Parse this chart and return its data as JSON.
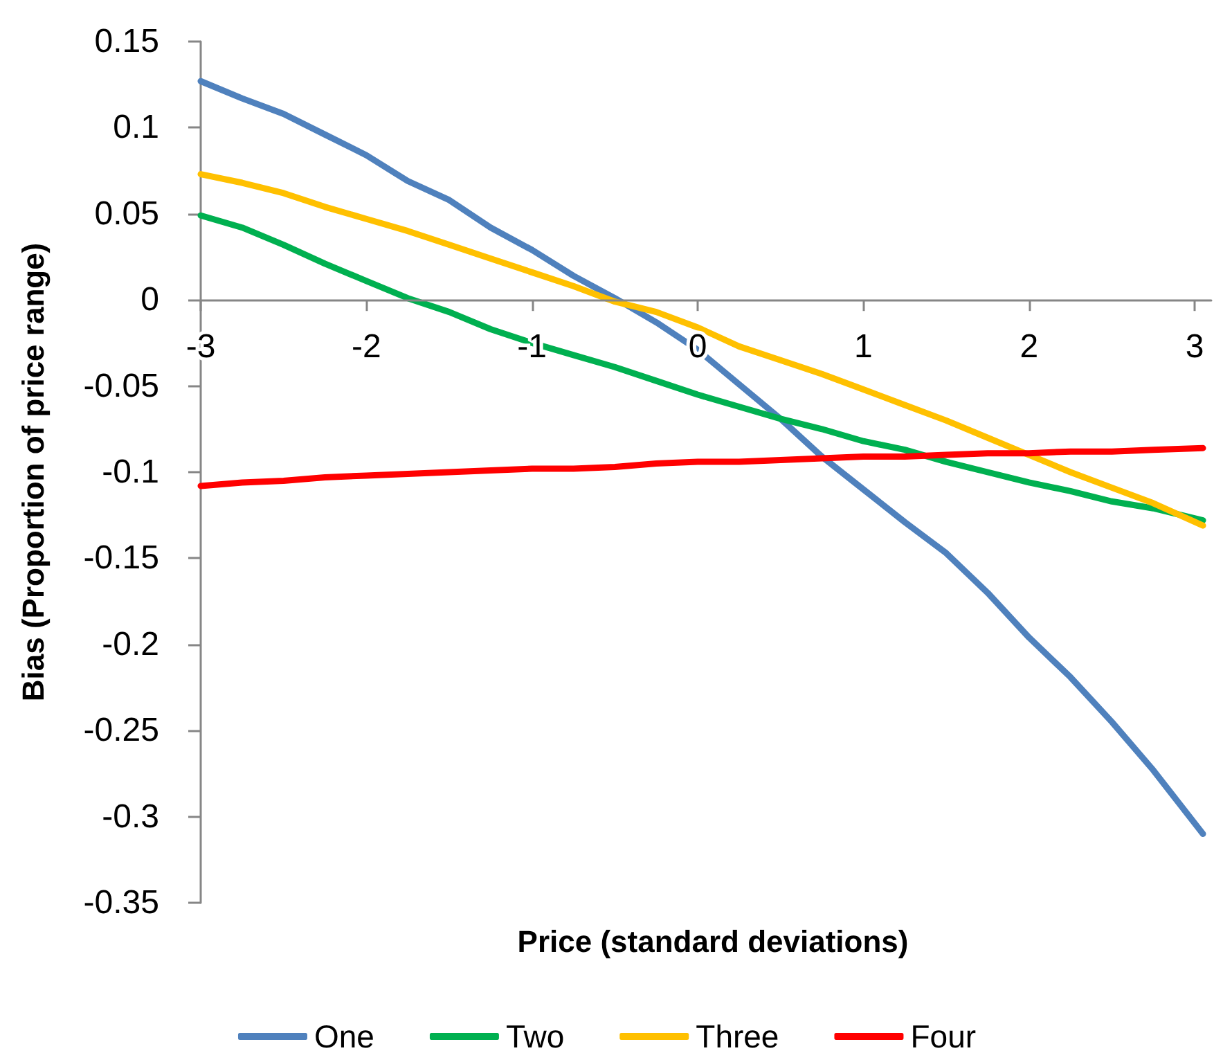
{
  "chart_data": {
    "type": "line",
    "xlabel": "Price (standard deviations)",
    "ylabel": "Bias (Proportion of price range)",
    "x": [
      -3,
      -2.75,
      -2.5,
      -2.25,
      -2,
      -1.75,
      -1.5,
      -1.25,
      -1,
      -0.75,
      -0.5,
      -0.25,
      0,
      0.25,
      0.5,
      0.75,
      1,
      1.25,
      1.5,
      1.75,
      2,
      2.25,
      2.5,
      2.75,
      3.05
    ],
    "series": [
      {
        "name": "One",
        "color": "#4f81bd",
        "values": [
          0.127,
          0.117,
          0.108,
          0.096,
          0.084,
          0.069,
          0.058,
          0.042,
          0.029,
          0.014,
          0.001,
          -0.013,
          -0.029,
          -0.049,
          -0.069,
          -0.091,
          -0.11,
          -0.129,
          -0.147,
          -0.17,
          -0.196,
          -0.219,
          -0.245,
          -0.273,
          -0.31
        ]
      },
      {
        "name": "Two",
        "color": "#00b050",
        "values": [
          0.049,
          0.042,
          0.032,
          0.021,
          0.011,
          0.001,
          -0.007,
          -0.017,
          -0.025,
          -0.032,
          -0.039,
          -0.047,
          -0.055,
          -0.062,
          -0.069,
          -0.075,
          -0.082,
          -0.087,
          -0.094,
          -0.1,
          -0.106,
          -0.111,
          -0.117,
          -0.121,
          -0.128
        ]
      },
      {
        "name": "Three",
        "color": "#ffc000",
        "values": [
          0.073,
          0.068,
          0.062,
          0.054,
          0.047,
          0.04,
          0.032,
          0.024,
          0.016,
          0.008,
          -0.001,
          -0.007,
          -0.016,
          -0.027,
          -0.035,
          -0.043,
          -0.052,
          -0.061,
          -0.07,
          -0.08,
          -0.09,
          -0.1,
          -0.109,
          -0.118,
          -0.131
        ]
      },
      {
        "name": "Four",
        "color": "#ff0000",
        "values": [
          -0.108,
          -0.106,
          -0.105,
          -0.103,
          -0.102,
          -0.101,
          -0.1,
          -0.099,
          -0.098,
          -0.098,
          -0.097,
          -0.095,
          -0.094,
          -0.094,
          -0.093,
          -0.092,
          -0.091,
          -0.091,
          -0.09,
          -0.089,
          -0.089,
          -0.088,
          -0.088,
          -0.087,
          -0.086
        ]
      }
    ],
    "xlim": [
      -3,
      3.1
    ],
    "xticks": [
      -3,
      -2,
      -1,
      0,
      1,
      2,
      3
    ],
    "ylim": [
      -0.35,
      0.15
    ],
    "yticks": [
      -0.35,
      -0.3,
      -0.25,
      -0.2,
      -0.15,
      -0.1,
      -0.05,
      0,
      0.05,
      0.1,
      0.15
    ],
    "legend": "bottom",
    "marker": "none",
    "line_style": "solid"
  }
}
